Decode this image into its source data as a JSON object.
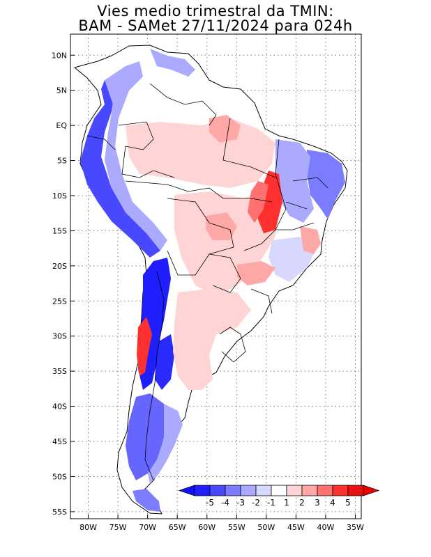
{
  "title_line1": "Vies medio trimestral da TMIN:",
  "title_line2": "BAM - SAMet 27/11/2024  para 024h",
  "map": {
    "lon_ticks": [
      "80W",
      "75W",
      "70W",
      "65W",
      "60W",
      "55W",
      "50W",
      "45W",
      "40W",
      "35W"
    ],
    "lat_ticks": [
      "10N",
      "5N",
      "EQ",
      "5S",
      "10S",
      "15S",
      "20S",
      "25S",
      "30S",
      "35S",
      "40S",
      "45S",
      "50S",
      "55S"
    ],
    "lon_range": [
      -83,
      -34
    ],
    "lat_range": [
      13,
      -56
    ],
    "gridlines": true
  },
  "colorbar": {
    "labels": [
      "-5",
      "-4",
      "-3",
      "-2",
      "-1",
      "1",
      "2",
      "3",
      "4",
      "5"
    ],
    "colors": [
      "#1e1eff",
      "#4848ff",
      "#7c7cff",
      "#aaaaff",
      "#d8d8ff",
      "#ffffff",
      "#ffd4d4",
      "#ffa8a8",
      "#ff7070",
      "#ff3030",
      "#e81010"
    ],
    "arrow_left_color": "#1010ff",
    "arrow_right_color": "#ee0000"
  }
}
